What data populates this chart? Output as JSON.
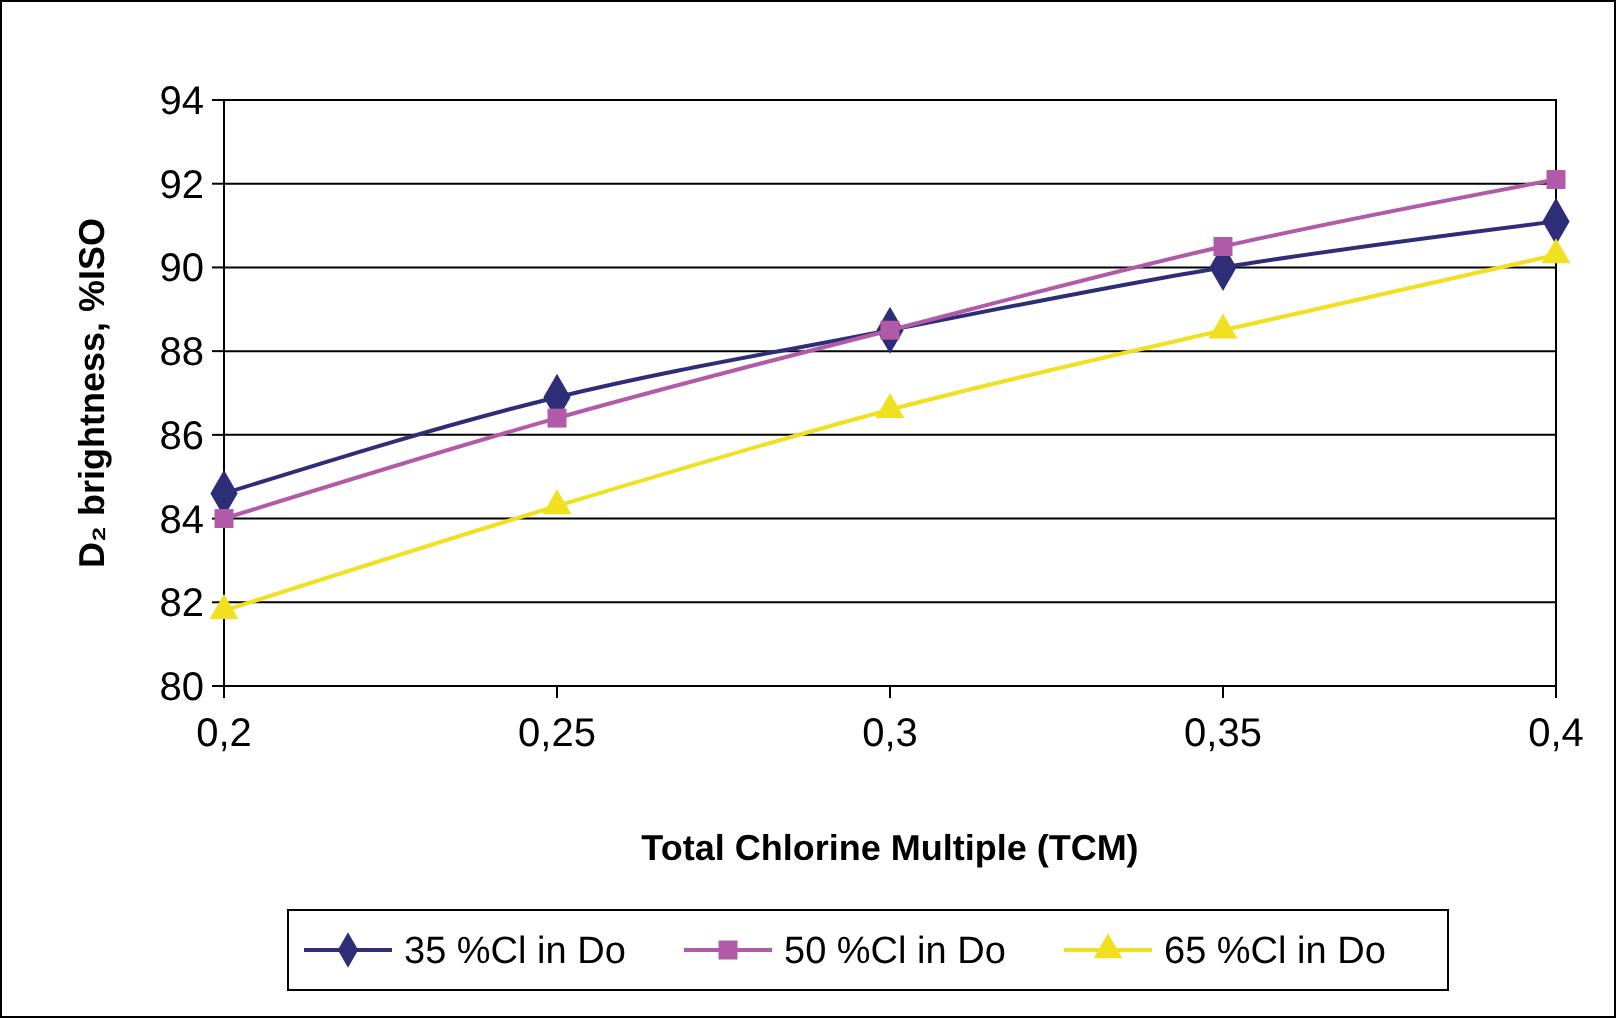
{
  "chart_data": {
    "type": "line",
    "xlabel": "Total Chlorine Multiple (TCM)",
    "ylabel": "D₂ brightness, %ISO",
    "x": [
      0.2,
      0.25,
      0.3,
      0.35,
      0.4
    ],
    "series": [
      {
        "name": "35 %Cl in Do",
        "color": "#2e2e78",
        "marker": "diamond",
        "values": [
          84.6,
          86.9,
          88.5,
          90.0,
          91.1
        ]
      },
      {
        "name": "50 %Cl in Do",
        "color": "#b05aa8",
        "marker": "square",
        "values": [
          84.0,
          86.4,
          88.5,
          90.5,
          92.1
        ]
      },
      {
        "name": "65 %Cl in Do",
        "color": "#f0e020",
        "marker": "triangle",
        "values": [
          81.8,
          84.3,
          86.6,
          88.5,
          90.3
        ]
      }
    ],
    "xlim": [
      0.2,
      0.4
    ],
    "xticks": [
      {
        "value": 0.2,
        "label": "0,2"
      },
      {
        "value": 0.25,
        "label": "0,25"
      },
      {
        "value": 0.3,
        "label": "0,3"
      },
      {
        "value": 0.35,
        "label": "0,35"
      },
      {
        "value": 0.4,
        "label": "0,4"
      }
    ],
    "ylim": [
      80,
      94
    ],
    "yticks": [
      80,
      82,
      84,
      86,
      88,
      90,
      92,
      94
    ],
    "grid": "y",
    "legend": "bottom"
  }
}
